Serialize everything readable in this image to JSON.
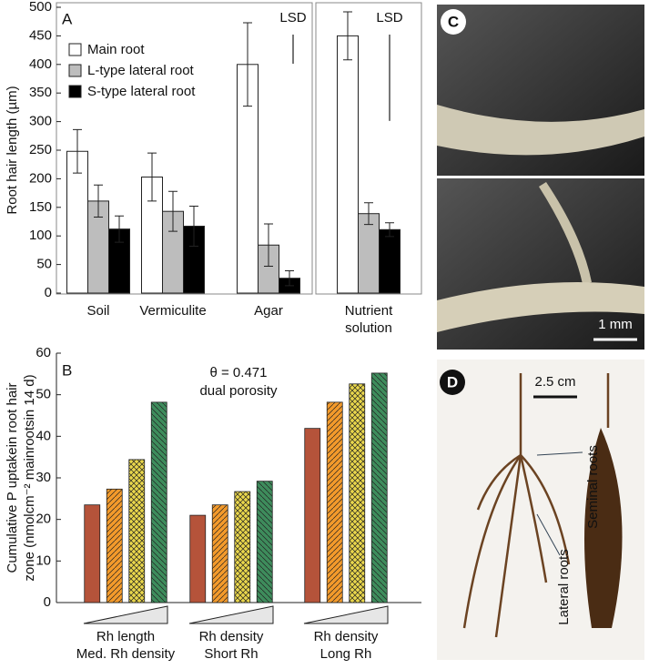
{
  "chart_data": [
    {
      "type": "bar",
      "panel": "A",
      "ylabel": "Root hair length (µm)",
      "categories": [
        [
          "Soil"
        ],
        [
          "Vermiculite"
        ],
        [
          "Agar"
        ],
        [
          "Nutrient",
          "solution"
        ]
      ],
      "series": [
        {
          "name": "Main root",
          "color": "#ffffff",
          "values": [
            248,
            203,
            400,
            450
          ],
          "errors": [
            38,
            42,
            73,
            42
          ]
        },
        {
          "name": "L-type lateral root",
          "color": "#bdbdbd",
          "values": [
            161,
            143,
            84,
            139
          ],
          "errors": [
            28,
            35,
            37,
            19
          ]
        },
        {
          "name": "S-type lateral root",
          "color": "#000000",
          "values": [
            112,
            117,
            26,
            111
          ],
          "errors": [
            23,
            35,
            13,
            12
          ]
        }
      ],
      "lsd": [
        {
          "label": "LSD",
          "value": 51
        },
        {
          "label": "LSD",
          "value": 151
        }
      ],
      "ylim": [
        0,
        500
      ],
      "yticks": [
        0,
        50,
        100,
        150,
        200,
        250,
        300,
        350,
        400,
        450,
        500
      ]
    },
    {
      "type": "bar",
      "panel": "B",
      "ylabel": [
        "Cumulative P uptakein root hair",
        "zone (nmolcm⁻² mainrootsin 14 d)"
      ],
      "annotations": [
        "θ = 0.471",
        "dual porosity"
      ],
      "categories": [
        [
          "Rh length",
          "Med. Rh density"
        ],
        [
          "Rh density",
          "Short Rh"
        ],
        [
          "Rh density",
          "Long Rh"
        ]
      ],
      "series": [
        {
          "color": "#b5533a",
          "values": [
            23.5,
            21,
            41.9
          ]
        },
        {
          "color": "#f39a2b",
          "values": [
            27.3,
            23.5,
            48.2
          ]
        },
        {
          "color": "#e9d64c",
          "values": [
            34.4,
            26.7,
            52.6
          ]
        },
        {
          "color": "#3e8c5c",
          "values": [
            48.2,
            29.2,
            55.2
          ]
        }
      ],
      "ylim": [
        0,
        60
      ],
      "yticks": [
        0,
        10,
        20,
        30,
        40,
        50,
        60
      ]
    }
  ],
  "photos": [
    {
      "label": "C",
      "scale": "1 mm"
    },
    {
      "label": "D",
      "scale": "2.5 cm",
      "annotations": [
        "Seminal roots",
        "Lateral roots"
      ]
    }
  ]
}
